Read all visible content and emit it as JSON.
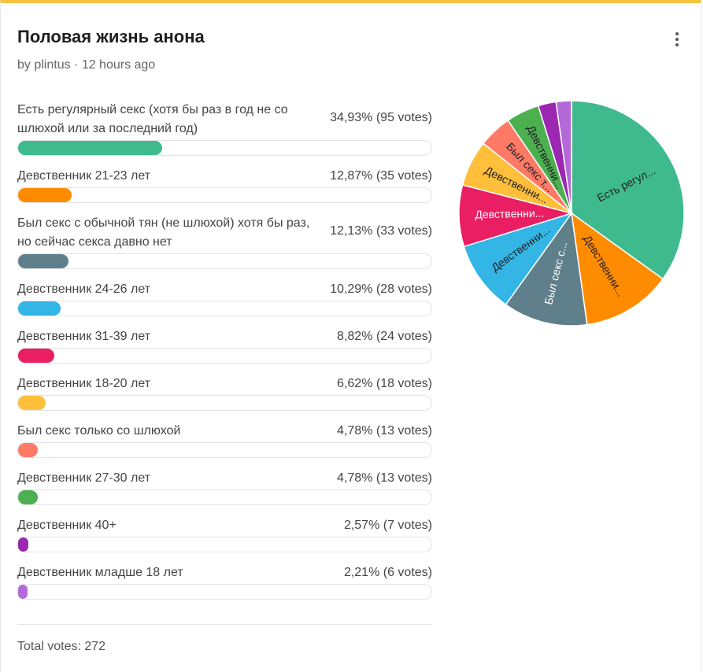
{
  "poll": {
    "title": "Половая жизнь анона",
    "meta": "by plintus · 12 hours ago",
    "total": "Total votes: 272",
    "menu_icon": "more-vertical-icon"
  },
  "options": [
    {
      "label": "Есть регулярный секс (хотя бы раз в год не со шлюхой или за последний год)",
      "stat": "34,93% (95 votes)",
      "color": "#3fba8f"
    },
    {
      "label": "Девственник 21-23 лет",
      "stat": "12,87% (35 votes)",
      "color": "#ff8c00"
    },
    {
      "label": "Был секс с обычной тян (не шлюхой) хотя бы раз, но сейчас секса давно нет",
      "stat": "12,13% (33 votes)",
      "color": "#5f7f8a"
    },
    {
      "label": "Девственник 24-26 лет",
      "stat": "10,29% (28 votes)",
      "color": "#33b5e5"
    },
    {
      "label": "Девственник 31-39 лет",
      "stat": "8,82% (24 votes)",
      "color": "#e91e63"
    },
    {
      "label": "Девственник 18-20 лет",
      "stat": "6,62% (18 votes)",
      "color": "#ffbf3a"
    },
    {
      "label": "Был секс только со шлюхой",
      "stat": "4,78% (13 votes)",
      "color": "#ff7a66"
    },
    {
      "label": "Девственник 27-30 лет",
      "stat": "4,78% (13 votes)",
      "color": "#4caf50"
    },
    {
      "label": "Девственник 40+",
      "stat": "2,57% (7 votes)",
      "color": "#9c27b0"
    },
    {
      "label": "Девственник младше 18 лет",
      "stat": "2,21% (6 votes)",
      "color": "#b36ad8"
    }
  ],
  "chart_data": {
    "type": "pie",
    "categories": [
      "Есть регулярный секс (хотя бы раз в год не со шлюхой или за последний год)",
      "Девственник 21-23 лет",
      "Был секс с обычной тян (не шлюхой) хотя бы раз, но сейчас секса давно нет",
      "Девственник 24-26 лет",
      "Девственник 31-39 лет",
      "Девственник 18-20 лет",
      "Был секс только со шлюхой",
      "Девственник 27-30 лет",
      "Девственник 40+",
      "Девственник младше 18 лет"
    ],
    "values": [
      95,
      35,
      33,
      28,
      24,
      18,
      13,
      13,
      7,
      6
    ],
    "percentages": [
      34.93,
      12.87,
      12.13,
      10.29,
      8.82,
      6.62,
      4.78,
      4.78,
      2.57,
      2.21
    ],
    "slice_labels": [
      "Есть регул...",
      "Девственни...",
      "Был секс с...",
      "Девственни...",
      "Девственни...",
      "Девственни...",
      "Был секс т...",
      "Девственни...",
      "",
      ""
    ],
    "slice_label_colors": [
      "#222222",
      "#222222",
      "#ffffff",
      "#222222",
      "#ffffff",
      "#222222",
      "#222222",
      "#222222",
      "",
      ""
    ],
    "colors": [
      "#3fba8f",
      "#ff8c00",
      "#5f7f8a",
      "#33b5e5",
      "#e91e63",
      "#ffbf3a",
      "#ff7a66",
      "#4caf50",
      "#9c27b0",
      "#b36ad8"
    ],
    "total_votes": 272
  }
}
